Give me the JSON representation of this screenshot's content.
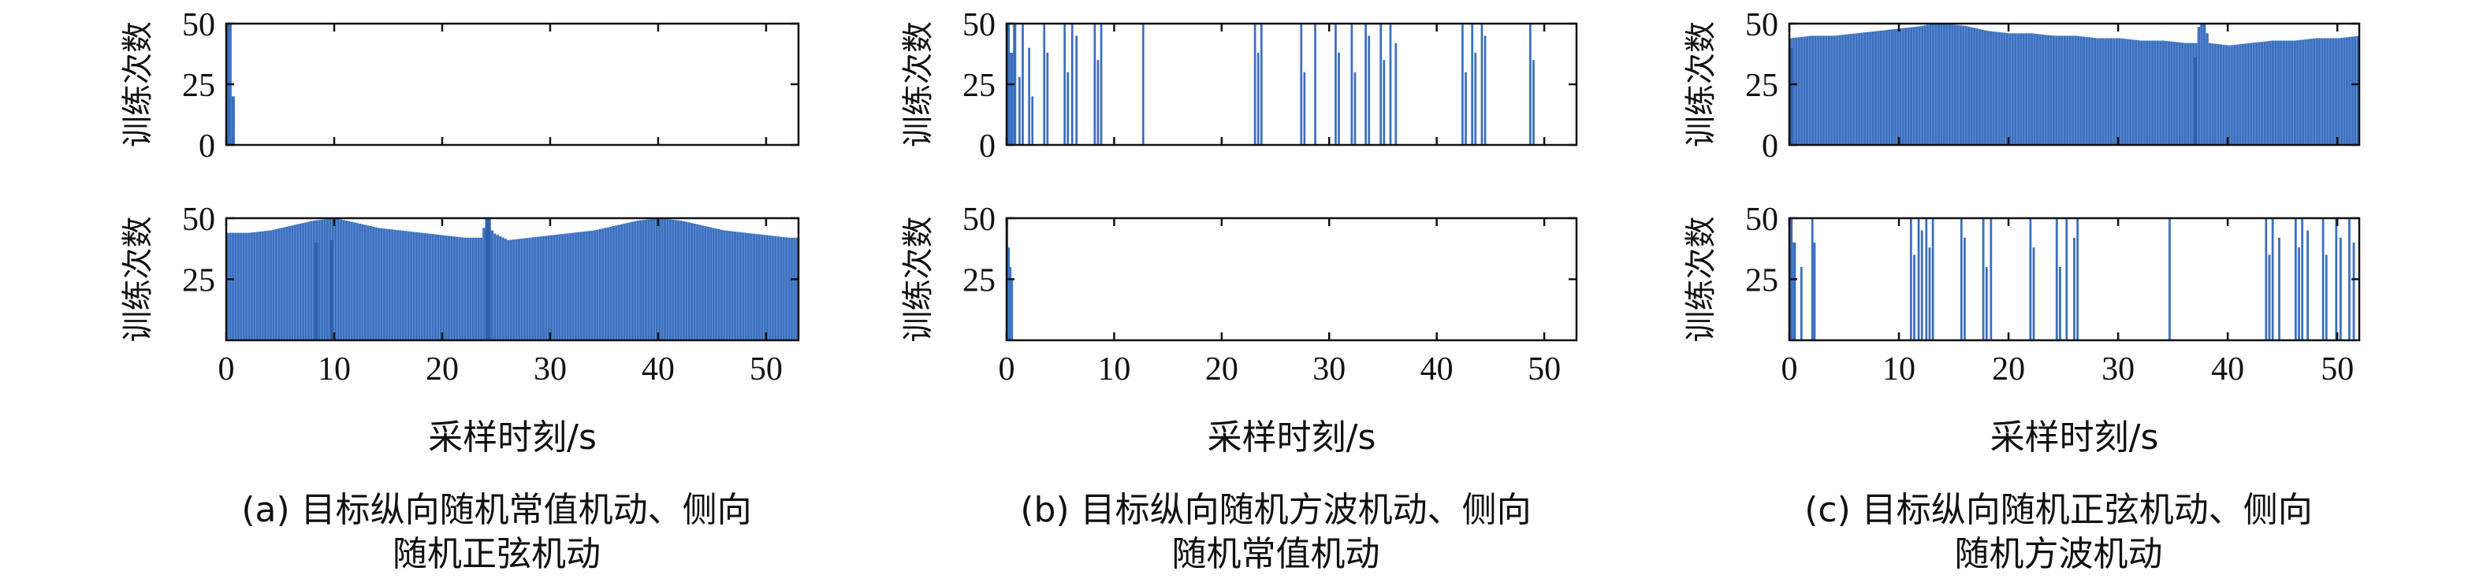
{
  "chart_data": [
    {
      "panel": "a",
      "caption_lines": [
        "(a) 目标纵向随机常值机动、侧向",
        "随机正弦机动"
      ],
      "xlabel": "采样时刻/s",
      "xlim": [
        0,
        53
      ],
      "xticks": [
        0,
        10,
        20,
        30,
        40,
        50
      ],
      "subplots": [
        {
          "type": "bar",
          "ylabel": "训练次数",
          "ylim": [
            0,
            50
          ],
          "yticks": [
            0,
            25,
            50
          ],
          "show_xtick_labels": false,
          "segments": [
            [
              0.0,
              0.5,
              50
            ],
            [
              0.5,
              0.8,
              20
            ]
          ]
        },
        {
          "type": "bar",
          "ylabel": "训练次数",
          "ylim": [
            0,
            50
          ],
          "yticks": [
            25,
            50
          ],
          "show_xtick_labels": true,
          "profile": [
            [
              0,
              44
            ],
            [
              2,
              44
            ],
            [
              4,
              45
            ],
            [
              6,
              47
            ],
            [
              8,
              49
            ],
            [
              10,
              50
            ],
            [
              12,
              48
            ],
            [
              14,
              46
            ],
            [
              16,
              45
            ],
            [
              18,
              44
            ],
            [
              20,
              43
            ],
            [
              22,
              42
            ],
            [
              23.5,
              42
            ],
            [
              24,
              50
            ],
            [
              24.6,
              44
            ],
            [
              26,
              41
            ],
            [
              28,
              42
            ],
            [
              30,
              43
            ],
            [
              32,
              44
            ],
            [
              34,
              45
            ],
            [
              36,
              47
            ],
            [
              38,
              49
            ],
            [
              40,
              50
            ],
            [
              42,
              49
            ],
            [
              44,
              47
            ],
            [
              46,
              45
            ],
            [
              48,
              44
            ],
            [
              50,
              43
            ],
            [
              52,
              42
            ],
            [
              53,
              42
            ]
          ],
          "notches": [
            [
              8.2,
              8.5,
              40
            ],
            [
              9.6,
              9.9,
              41
            ],
            [
              24.0,
              24.5,
              50
            ]
          ]
        }
      ]
    },
    {
      "panel": "b",
      "caption_lines": [
        "(b) 目标纵向随机方波机动、侧向",
        "随机常值机动"
      ],
      "xlabel": "采样时刻/s",
      "xlim": [
        0,
        53
      ],
      "xticks": [
        0,
        10,
        20,
        30,
        40,
        50
      ],
      "subplots": [
        {
          "type": "bar",
          "ylabel": "训练次数",
          "ylim": [
            0,
            50
          ],
          "yticks": [
            0,
            25,
            50
          ],
          "show_xtick_labels": false,
          "segments": [
            [
              0.0,
              0.3,
              50
            ],
            [
              0.3,
              0.6,
              38
            ],
            [
              0.6,
              0.9,
              50
            ],
            [
              1.1,
              1.3,
              28
            ],
            [
              1.4,
              1.6,
              50
            ],
            [
              2.0,
              2.2,
              40
            ],
            [
              2.3,
              2.5,
              20
            ],
            [
              3.4,
              3.6,
              50
            ],
            [
              3.7,
              3.9,
              38
            ],
            [
              5.3,
              5.5,
              50
            ],
            [
              5.6,
              5.8,
              30
            ],
            [
              6.0,
              6.2,
              50
            ],
            [
              6.4,
              6.6,
              45
            ],
            [
              8.1,
              8.3,
              50
            ],
            [
              8.4,
              8.6,
              35
            ],
            [
              8.7,
              8.9,
              50
            ],
            [
              12.6,
              12.8,
              50
            ],
            [
              23.0,
              23.2,
              50
            ],
            [
              23.3,
              23.5,
              38
            ],
            [
              23.6,
              23.8,
              50
            ],
            [
              27.3,
              27.5,
              50
            ],
            [
              27.6,
              27.8,
              30
            ],
            [
              28.6,
              28.8,
              50
            ],
            [
              30.5,
              30.7,
              50
            ],
            [
              30.8,
              31.0,
              38
            ],
            [
              32.0,
              32.2,
              50
            ],
            [
              32.3,
              32.5,
              30
            ],
            [
              33.3,
              33.5,
              50
            ],
            [
              33.6,
              33.8,
              45
            ],
            [
              34.7,
              34.9,
              50
            ],
            [
              35.0,
              35.2,
              35
            ],
            [
              35.6,
              35.8,
              50
            ],
            [
              36.1,
              36.3,
              42
            ],
            [
              42.3,
              42.5,
              50
            ],
            [
              42.6,
              42.8,
              30
            ],
            [
              43.2,
              43.4,
              50
            ],
            [
              43.5,
              43.7,
              38
            ],
            [
              44.1,
              44.3,
              50
            ],
            [
              44.4,
              44.6,
              45
            ],
            [
              48.6,
              48.8,
              50
            ],
            [
              48.9,
              49.1,
              35
            ]
          ]
        },
        {
          "type": "bar",
          "ylabel": "训练次数",
          "ylim": [
            0,
            50
          ],
          "yticks": [
            25,
            50
          ],
          "show_xtick_labels": true,
          "segments": [
            [
              0.0,
              0.15,
              50
            ],
            [
              0.15,
              0.3,
              38
            ],
            [
              0.3,
              0.45,
              30
            ],
            [
              0.45,
              0.6,
              25
            ]
          ]
        }
      ]
    },
    {
      "panel": "c",
      "caption_lines": [
        "(c) 目标纵向随机正弦机动、侧向",
        "随机方波机动"
      ],
      "xlabel": "采样时刻/s",
      "xlim": [
        0,
        52
      ],
      "xticks": [
        0,
        10,
        20,
        30,
        40,
        50
      ],
      "subplots": [
        {
          "type": "bar",
          "ylabel": "训练次数",
          "ylim": [
            0,
            50
          ],
          "yticks": [
            0,
            25,
            50
          ],
          "show_xtick_labels": false,
          "profile": [
            [
              0,
              44
            ],
            [
              2,
              45
            ],
            [
              4,
              45
            ],
            [
              6,
              46
            ],
            [
              8,
              47
            ],
            [
              10,
              48
            ],
            [
              12,
              49
            ],
            [
              13,
              50
            ],
            [
              14,
              50
            ],
            [
              16,
              49
            ],
            [
              18,
              47
            ],
            [
              20,
              46
            ],
            [
              22,
              46
            ],
            [
              24,
              45
            ],
            [
              26,
              45
            ],
            [
              28,
              44
            ],
            [
              30,
              44
            ],
            [
              32,
              43
            ],
            [
              34,
              43
            ],
            [
              36,
              42
            ],
            [
              37,
              42
            ],
            [
              37.3,
              50
            ],
            [
              37.8,
              50
            ],
            [
              38.2,
              42
            ],
            [
              40,
              41
            ],
            [
              42,
              42
            ],
            [
              44,
              43
            ],
            [
              46,
              43
            ],
            [
              48,
              44
            ],
            [
              50,
              44
            ],
            [
              52,
              45
            ]
          ],
          "notches": [
            [
              0.0,
              0.3,
              40
            ],
            [
              36.9,
              37.2,
              36
            ]
          ]
        },
        {
          "type": "bar",
          "ylabel": "训练次数",
          "ylim": [
            0,
            50
          ],
          "yticks": [
            25,
            50
          ],
          "show_xtick_labels": true,
          "segments": [
            [
              0.0,
              0.3,
              50
            ],
            [
              0.3,
              0.6,
              40
            ],
            [
              1.0,
              1.2,
              30
            ],
            [
              2.0,
              2.2,
              50
            ],
            [
              2.2,
              2.4,
              40
            ],
            [
              11.0,
              11.2,
              50
            ],
            [
              11.3,
              11.5,
              35
            ],
            [
              11.7,
              11.9,
              50
            ],
            [
              12.0,
              12.2,
              45
            ],
            [
              12.4,
              12.6,
              50
            ],
            [
              12.7,
              12.9,
              38
            ],
            [
              13.0,
              13.2,
              50
            ],
            [
              15.6,
              15.8,
              50
            ],
            [
              15.9,
              16.1,
              42
            ],
            [
              17.6,
              17.8,
              50
            ],
            [
              17.9,
              18.1,
              30
            ],
            [
              18.3,
              18.5,
              50
            ],
            [
              21.9,
              22.1,
              50
            ],
            [
              22.2,
              22.4,
              38
            ],
            [
              24.3,
              24.5,
              50
            ],
            [
              24.6,
              24.8,
              30
            ],
            [
              25.2,
              25.4,
              50
            ],
            [
              25.9,
              26.1,
              42
            ],
            [
              26.2,
              26.4,
              50
            ],
            [
              34.6,
              34.8,
              50
            ],
            [
              43.4,
              43.6,
              50
            ],
            [
              43.7,
              43.9,
              35
            ],
            [
              44.0,
              44.2,
              50
            ],
            [
              44.6,
              44.8,
              42
            ],
            [
              46.1,
              46.3,
              50
            ],
            [
              46.4,
              46.6,
              38
            ],
            [
              46.7,
              46.9,
              50
            ],
            [
              47.2,
              47.4,
              45
            ],
            [
              48.6,
              48.8,
              50
            ],
            [
              48.9,
              49.1,
              35
            ],
            [
              49.8,
              50.0,
              50
            ],
            [
              50.2,
              50.4,
              42
            ],
            [
              51.0,
              51.2,
              50
            ],
            [
              51.4,
              51.6,
              40
            ]
          ]
        }
      ]
    }
  ]
}
